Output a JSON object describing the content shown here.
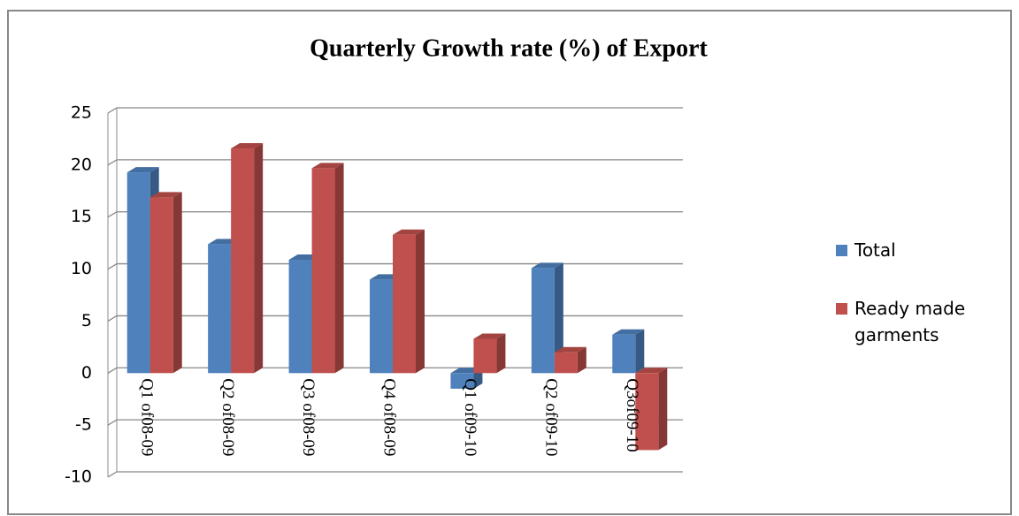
{
  "chart_data": {
    "type": "bar3d",
    "title": "Quarterly Growth rate (%) of Export",
    "categories": [
      "Q1 of08-09",
      "Q2 of08-09",
      "Q3 of08-09",
      "Q4 of08-09",
      "Q1 of09-10",
      "Q2 of09-10",
      "Q3of09-10"
    ],
    "series": [
      {
        "name": "Total",
        "color": "#4f81bd",
        "values": [
          19.3,
          12.4,
          10.9,
          9.0,
          -1.5,
          10.1,
          3.7
        ]
      },
      {
        "name": "Ready made garments",
        "color": "#c0504d",
        "values": [
          16.9,
          21.6,
          19.7,
          13.3,
          3.3,
          2.0,
          -7.4
        ]
      }
    ],
    "ylim": [
      -10,
      25
    ],
    "yticks": [
      -10,
      -5,
      0,
      5,
      10,
      15,
      20,
      25
    ],
    "grid": true,
    "legend": "right"
  }
}
